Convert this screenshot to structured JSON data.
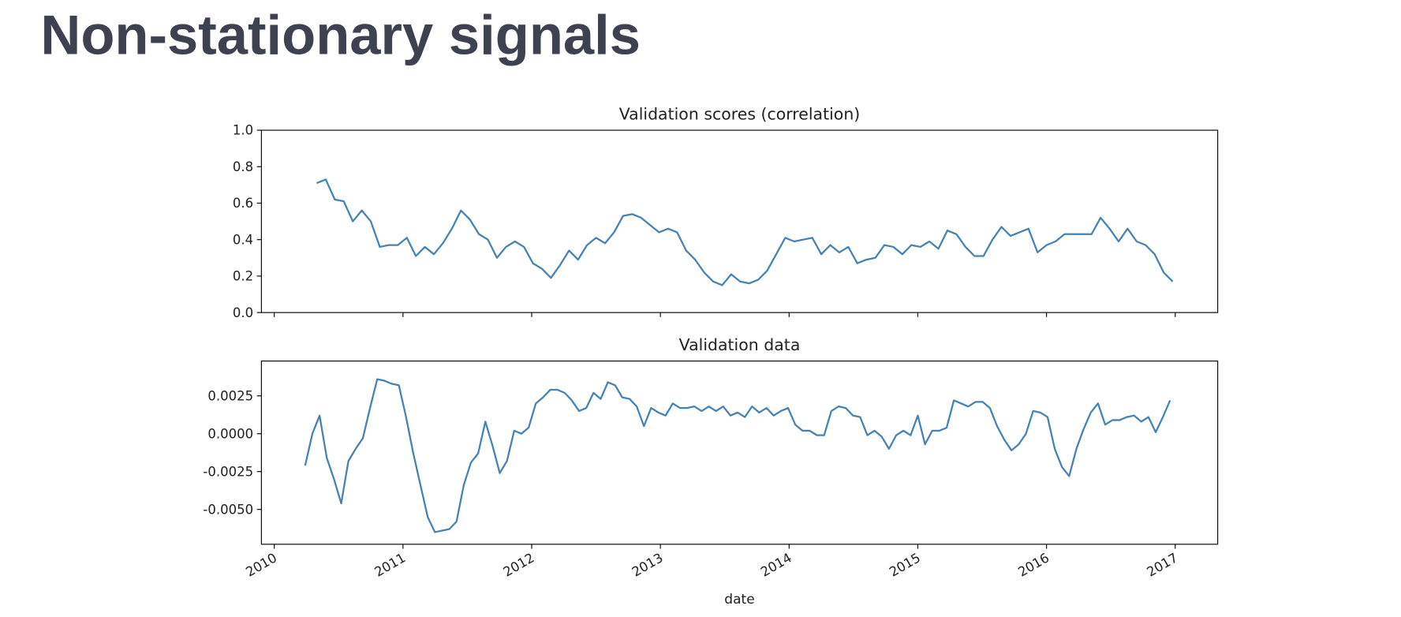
{
  "title": "Non-stationary signals",
  "chart_data": [
    {
      "type": "line",
      "title": "Validation scores (correlation)",
      "color": "#4682b4",
      "xlim": [
        2009.9,
        2017.33
      ],
      "xticks": [
        2010,
        2011,
        2012,
        2013,
        2014,
        2015,
        2016,
        2017
      ],
      "show_xticklabels": false,
      "ylim": [
        0,
        1
      ],
      "yticks": [
        {
          "value": 0,
          "label": "0.0"
        },
        0.2,
        0.4,
        0.6,
        0.8,
        {
          "value": 1,
          "label": "1.0"
        }
      ],
      "x": [
        2010.33,
        2010.4,
        2010.47,
        2010.54,
        2010.61,
        2010.68,
        2010.75,
        2010.82,
        2010.89,
        2010.96,
        2011.03,
        2011.1,
        2011.17,
        2011.24,
        2011.31,
        2011.38,
        2011.45,
        2011.52,
        2011.59,
        2011.66,
        2011.73,
        2011.8,
        2011.87,
        2011.94,
        2012.01,
        2012.08,
        2012.15,
        2012.22,
        2012.29,
        2012.36,
        2012.43,
        2012.5,
        2012.57,
        2012.64,
        2012.71,
        2012.78,
        2012.85,
        2012.92,
        2012.99,
        2013.06,
        2013.13,
        2013.2,
        2013.27,
        2013.34,
        2013.41,
        2013.48,
        2013.55,
        2013.62,
        2013.69,
        2013.76,
        2013.83,
        2013.9,
        2013.97,
        2014.04,
        2014.11,
        2014.18,
        2014.25,
        2014.32,
        2014.39,
        2014.46,
        2014.53,
        2014.6,
        2014.67,
        2014.74,
        2014.81,
        2014.88,
        2014.95,
        2015.02,
        2015.09,
        2015.16,
        2015.23,
        2015.3,
        2015.37,
        2015.44,
        2015.51,
        2015.58,
        2015.65,
        2015.72,
        2015.79,
        2015.86,
        2015.93,
        2016.0,
        2016.07,
        2016.14,
        2016.21,
        2016.28,
        2016.35,
        2016.42,
        2016.49,
        2016.56,
        2016.63,
        2016.7,
        2016.77,
        2016.84,
        2016.91,
        2016.98
      ],
      "values": [
        0.71,
        0.73,
        0.62,
        0.61,
        0.5,
        0.56,
        0.5,
        0.36,
        0.37,
        0.37,
        0.41,
        0.31,
        0.36,
        0.32,
        0.38,
        0.46,
        0.56,
        0.51,
        0.43,
        0.4,
        0.3,
        0.36,
        0.39,
        0.36,
        0.27,
        0.24,
        0.19,
        0.26,
        0.34,
        0.29,
        0.37,
        0.41,
        0.38,
        0.44,
        0.53,
        0.54,
        0.52,
        0.48,
        0.44,
        0.46,
        0.44,
        0.34,
        0.29,
        0.22,
        0.17,
        0.15,
        0.21,
        0.17,
        0.16,
        0.18,
        0.23,
        0.32,
        0.41,
        0.39,
        0.4,
        0.41,
        0.32,
        0.37,
        0.33,
        0.36,
        0.27,
        0.29,
        0.3,
        0.37,
        0.36,
        0.32,
        0.37,
        0.36,
        0.39,
        0.35,
        0.45,
        0.43,
        0.36,
        0.31,
        0.31,
        0.4,
        0.47,
        0.42,
        0.44,
        0.46,
        0.33,
        0.37,
        0.39,
        0.43,
        0.43,
        0.43,
        0.43,
        0.52,
        0.46,
        0.39,
        0.46,
        0.39,
        0.37,
        0.32,
        0.22,
        0.17
      ]
    },
    {
      "type": "line",
      "title": "Validation data",
      "color": "#4682b4",
      "xlabel": "date",
      "xlim": [
        2009.9,
        2017.33
      ],
      "xticks": [
        2010,
        2011,
        2012,
        2013,
        2014,
        2015,
        2016,
        2017
      ],
      "show_xticklabels": true,
      "ylim": [
        -0.0073,
        0.0048
      ],
      "yticks": [
        {
          "value": -0.005,
          "label": "-0.0050"
        },
        -0.0025,
        {
          "value": 0,
          "label": "0.0000"
        },
        0.0025
      ],
      "x": [
        2010.24,
        2010.296,
        2010.352,
        2010.408,
        2010.464,
        2010.52,
        2010.576,
        2010.632,
        2010.688,
        2010.744,
        2010.8,
        2010.856,
        2010.912,
        2010.968,
        2011.024,
        2011.08,
        2011.136,
        2011.192,
        2011.248,
        2011.304,
        2011.36,
        2011.416,
        2011.472,
        2011.528,
        2011.584,
        2011.64,
        2011.696,
        2011.752,
        2011.808,
        2011.864,
        2011.92,
        2011.976,
        2012.032,
        2012.088,
        2012.144,
        2012.2,
        2012.256,
        2012.312,
        2012.368,
        2012.424,
        2012.48,
        2012.536,
        2012.592,
        2012.648,
        2012.704,
        2012.76,
        2012.816,
        2012.872,
        2012.928,
        2012.984,
        2013.04,
        2013.096,
        2013.152,
        2013.208,
        2013.264,
        2013.32,
        2013.376,
        2013.432,
        2013.488,
        2013.544,
        2013.6,
        2013.656,
        2013.712,
        2013.768,
        2013.824,
        2013.88,
        2013.936,
        2013.992,
        2014.048,
        2014.104,
        2014.16,
        2014.216,
        2014.272,
        2014.328,
        2014.384,
        2014.44,
        2014.496,
        2014.552,
        2014.608,
        2014.664,
        2014.72,
        2014.776,
        2014.832,
        2014.888,
        2014.944,
        2015.0,
        2015.056,
        2015.112,
        2015.168,
        2015.224,
        2015.28,
        2015.336,
        2015.392,
        2015.448,
        2015.504,
        2015.56,
        2015.616,
        2015.672,
        2015.728,
        2015.784,
        2015.84,
        2015.896,
        2015.952,
        2016.008,
        2016.064,
        2016.12,
        2016.176,
        2016.232,
        2016.288,
        2016.344,
        2016.4,
        2016.456,
        2016.512,
        2016.568,
        2016.624,
        2016.68,
        2016.736,
        2016.792,
        2016.848,
        2016.904,
        2016.96
      ],
      "values": [
        -0.0021,
        0.0,
        0.0012,
        -0.0016,
        -0.003,
        -0.0046,
        -0.0018,
        -0.001,
        -0.0003,
        0.0017,
        0.0036,
        0.0035,
        0.0033,
        0.0032,
        0.0011,
        -0.0013,
        -0.0034,
        -0.0055,
        -0.0065,
        -0.0064,
        -0.0063,
        -0.0058,
        -0.0034,
        -0.0019,
        -0.0013,
        0.0008,
        -0.0008,
        -0.0026,
        -0.0018,
        0.0002,
        0.0,
        0.0004,
        0.002,
        0.0024,
        0.0029,
        0.0029,
        0.0027,
        0.0022,
        0.0015,
        0.0017,
        0.0027,
        0.0023,
        0.0034,
        0.0032,
        0.0024,
        0.0023,
        0.0018,
        0.0005,
        0.0017,
        0.0014,
        0.0012,
        0.002,
        0.0017,
        0.0017,
        0.0018,
        0.0015,
        0.0018,
        0.0015,
        0.0018,
        0.0012,
        0.0014,
        0.0011,
        0.0018,
        0.0014,
        0.0017,
        0.0012,
        0.0015,
        0.0017,
        0.0006,
        0.0002,
        0.0002,
        -0.0001,
        -0.0001,
        0.0015,
        0.0018,
        0.0017,
        0.0012,
        0.0011,
        -0.0001,
        0.0002,
        -0.0002,
        -0.001,
        -0.0001,
        0.0002,
        -0.0001,
        0.0012,
        -0.0007,
        0.0002,
        0.0002,
        0.0004,
        0.0022,
        0.002,
        0.0018,
        0.0021,
        0.0021,
        0.0017,
        0.0005,
        -0.0004,
        -0.0011,
        -0.0007,
        0.0,
        0.0015,
        0.0014,
        0.0011,
        -0.001,
        -0.0022,
        -0.0028,
        -0.001,
        0.0003,
        0.0014,
        0.002,
        0.0006,
        0.0009,
        0.0009,
        0.0011,
        0.0012,
        0.0008,
        0.0011,
        0.0001,
        0.0011,
        0.0022
      ]
    }
  ]
}
